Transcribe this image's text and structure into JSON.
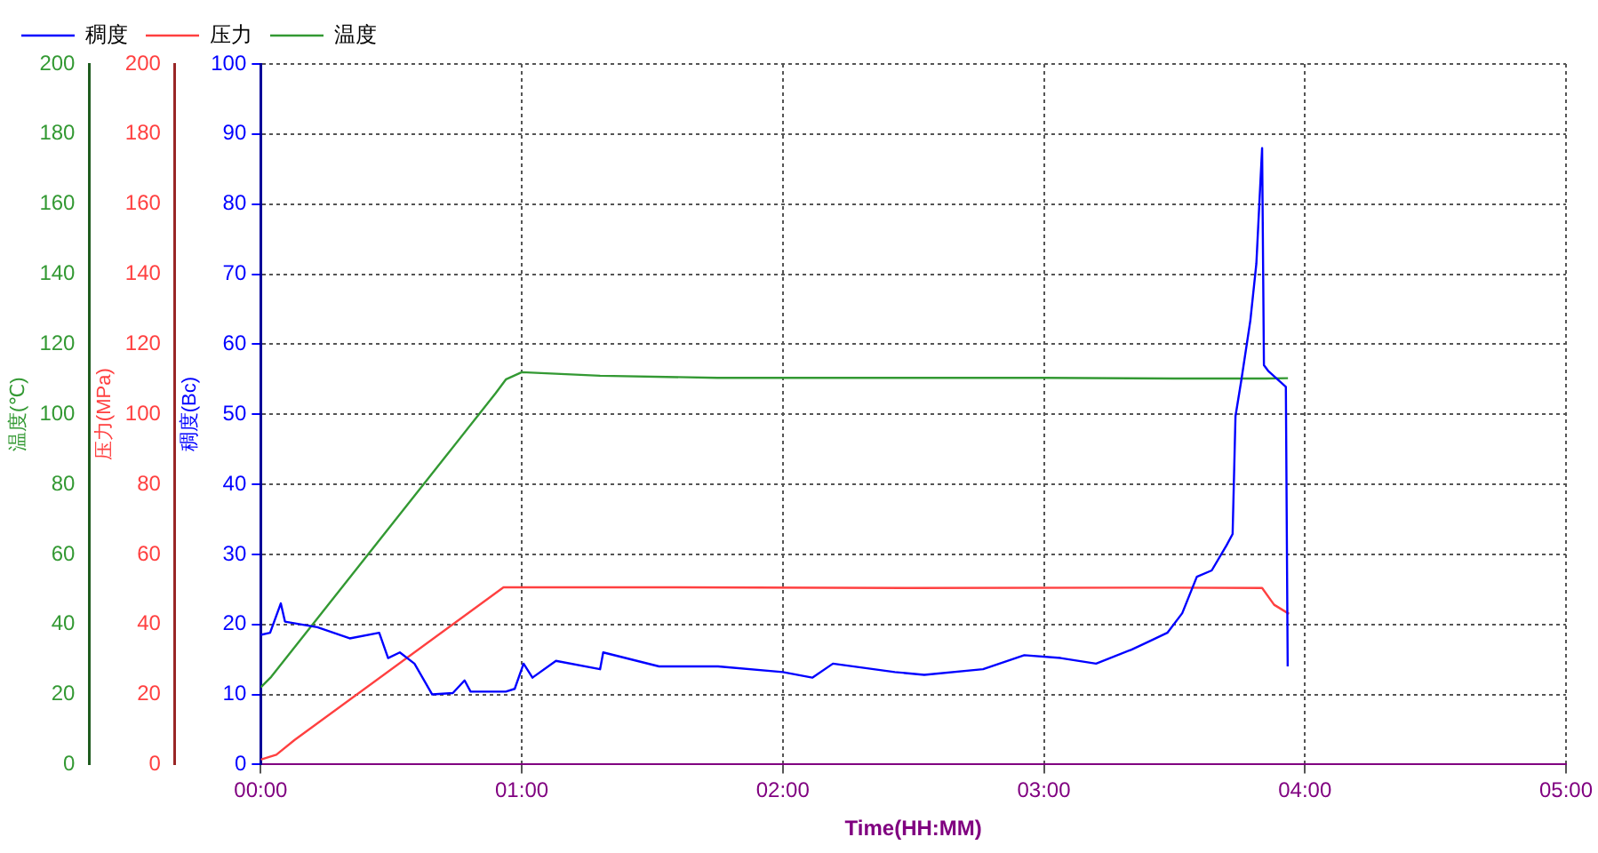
{
  "chart_data": {
    "type": "line",
    "xlabel": "Time(HH:MM)",
    "ylabel": "稠度(Bc)",
    "y2label": "压力(MPa)",
    "y3label": "温度(℃)",
    "xlim": [
      0,
      5
    ],
    "xticks": [
      {
        "value": 0,
        "label": "00:00"
      },
      {
        "value": 1,
        "label": "01:00"
      },
      {
        "value": 2,
        "label": "02:00"
      },
      {
        "value": 3,
        "label": "03:00"
      },
      {
        "value": 4,
        "label": "04:00"
      },
      {
        "value": 5,
        "label": "05:00"
      }
    ],
    "ylim": [
      0,
      100
    ],
    "yticks": [
      0,
      10,
      20,
      30,
      40,
      50,
      60,
      70,
      80,
      90,
      100
    ],
    "y2lim": [
      0,
      200
    ],
    "y2ticks": [
      0,
      20,
      40,
      60,
      80,
      100,
      120,
      140,
      160,
      180,
      200
    ],
    "y3lim": [
      0,
      200
    ],
    "y3ticks": [
      0,
      20,
      40,
      60,
      80,
      100,
      120,
      140,
      160,
      180,
      200
    ],
    "grid": true,
    "legend": "top left",
    "line_style": "solid",
    "series": [
      {
        "name": "稠度",
        "color": "#0000ff",
        "axis": "y",
        "x": [
          0,
          0.036,
          0.077,
          0.093,
          0.217,
          0.341,
          0.454,
          0.488,
          0.533,
          0.589,
          0.657,
          0.736,
          0.781,
          0.804,
          0.939,
          0.973,
          1.007,
          1.041,
          1.131,
          1.3,
          1.312,
          1.526,
          1.752,
          2.0,
          2.113,
          2.192,
          2.429,
          2.542,
          2.767,
          2.925,
          3.064,
          3.2,
          3.336,
          3.405,
          3.473,
          3.53,
          3.586,
          3.643,
          3.7,
          3.723,
          3.734,
          3.757,
          3.791,
          3.814,
          3.836,
          3.843,
          3.859,
          3.927,
          3.934
        ],
        "values": [
          18.5,
          18.8,
          23,
          20.4,
          19.6,
          18,
          18.8,
          15.2,
          16,
          14.4,
          10,
          10.2,
          12,
          10.4,
          10.4,
          10.8,
          14.4,
          12.4,
          14.8,
          13.6,
          16,
          14,
          14,
          13.2,
          12.4,
          14.4,
          13.2,
          12.8,
          13.6,
          15.6,
          15.2,
          14.4,
          16.4,
          17.6,
          18.8,
          21.6,
          26.8,
          27.7,
          31.3,
          32.9,
          49.7,
          55,
          63.4,
          71.5,
          88,
          57,
          56.2,
          53.9,
          14
        ]
      },
      {
        "name": "压力",
        "color": "#ff4040",
        "axis": "y2",
        "x": [
          0,
          0.06,
          0.13,
          0.93,
          1.5,
          2.5,
          3.5,
          3.836,
          3.882,
          3.939
        ],
        "values": [
          1.4,
          2.8,
          7,
          50.6,
          50.6,
          50.4,
          50.5,
          50.4,
          45.6,
          43
        ]
      },
      {
        "name": "温度",
        "color": "#339933",
        "axis": "y3",
        "x": [
          0,
          0.04,
          0.9,
          0.94,
          1.0,
          1.15,
          1.3,
          1.75,
          3.0,
          3.5,
          3.85,
          3.935
        ],
        "values": [
          22,
          25,
          106,
          110,
          112,
          111.5,
          111,
          110.4,
          110.4,
          110.2,
          110.2,
          110.3
        ]
      }
    ]
  }
}
